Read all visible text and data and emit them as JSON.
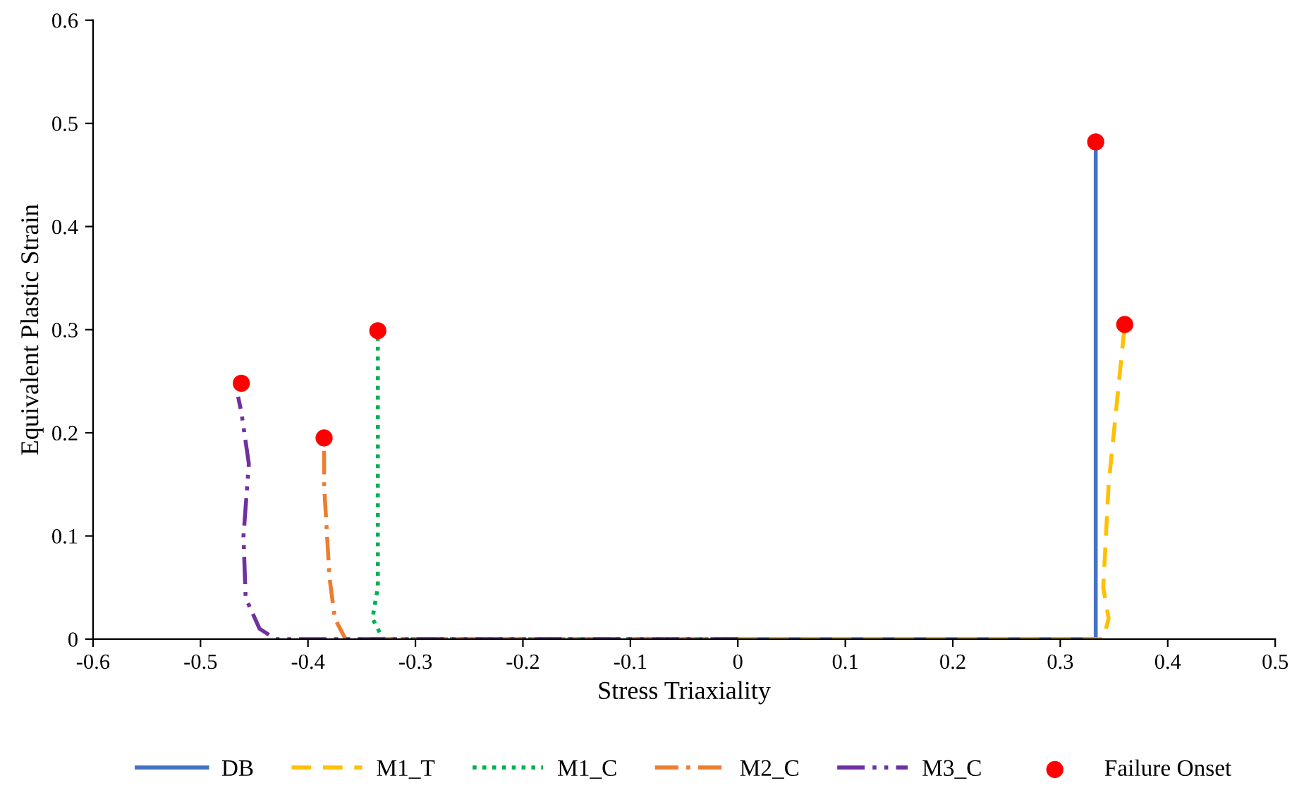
{
  "chart_data": {
    "type": "line",
    "xlabel": "Stress Triaxiality",
    "ylabel": "Equivalent Plastic Strain",
    "xlim": [
      -0.6,
      0.5
    ],
    "xticks": [
      -0.6,
      -0.5,
      -0.4,
      -0.3,
      -0.2,
      -0.1,
      0,
      0.1,
      0.2,
      0.3,
      0.4,
      0.5
    ],
    "ylim": [
      0,
      0.6
    ],
    "yticks": [
      0,
      0.1,
      0.2,
      0.3,
      0.4,
      0.5,
      0.6
    ],
    "grid": false,
    "legend": "bottom",
    "series": [
      {
        "name": "DB",
        "color": "#4472c4",
        "line_style": "solid",
        "x": [
          0,
          0.333,
          0.333,
          0.333
        ],
        "values": [
          0,
          0,
          0.25,
          0.482
        ]
      },
      {
        "name": "M1_T",
        "color": "#ffc000",
        "line_style": "dashed",
        "x": [
          0,
          0.34,
          0.345,
          0.34,
          0.345,
          0.36
        ],
        "values": [
          0,
          0,
          0.02,
          0.05,
          0.15,
          0.305
        ]
      },
      {
        "name": "M1_C",
        "color": "#00b050",
        "line_style": "dotted",
        "x": [
          0,
          -0.33,
          -0.34,
          -0.335,
          -0.335
        ],
        "values": [
          0,
          0,
          0.02,
          0.05,
          0.299
        ]
      },
      {
        "name": "M2_C",
        "color": "#ed7d31",
        "line_style": "dashdot",
        "x": [
          0,
          -0.365,
          -0.375,
          -0.38,
          -0.385,
          -0.385
        ],
        "values": [
          0,
          0,
          0.02,
          0.06,
          0.15,
          0.195
        ]
      },
      {
        "name": "M3_C",
        "color": "#7030a0",
        "line_style": "dashdotdot",
        "x": [
          0,
          -0.43,
          -0.445,
          -0.458,
          -0.46,
          -0.455,
          -0.462,
          -0.465
        ],
        "values": [
          0,
          0,
          0.01,
          0.04,
          0.1,
          0.17,
          0.22,
          0.235
        ]
      },
      {
        "name": "Failure Onset",
        "type": "scatter",
        "color": "#ff0000",
        "marker": "circle",
        "x": [
          0.333,
          0.36,
          -0.335,
          -0.385,
          -0.462
        ],
        "values": [
          0.482,
          0.305,
          0.299,
          0.195,
          0.248
        ]
      }
    ]
  }
}
